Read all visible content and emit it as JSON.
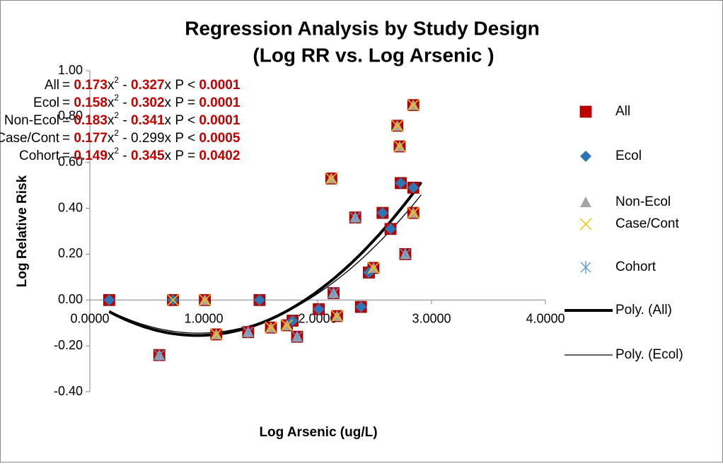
{
  "chart_data": {
    "type": "scatter",
    "title": "Regression Analysis by Study Design",
    "subtitle": "(Log RR vs. Log Arsenic )",
    "x_label": "Log Arsenic (ug/L)",
    "y_label": "Log Relative Risk",
    "xlim": [
      0,
      4
    ],
    "ylim": [
      -0.4,
      1
    ],
    "xticks": [
      {
        "value": 0,
        "label": "0.0000"
      },
      {
        "value": 1,
        "label": "1.0000"
      },
      {
        "value": 2,
        "label": "2.0000"
      },
      {
        "value": 3,
        "label": "3.0000"
      },
      {
        "value": 4,
        "label": "4.0000"
      }
    ],
    "yticks": [
      {
        "value": -0.4,
        "label": "-0.40"
      },
      {
        "value": -0.2,
        "label": "-0.20"
      },
      {
        "value": 0,
        "label": "0.00"
      },
      {
        "value": 0.2,
        "label": "0.20"
      },
      {
        "value": 0.4,
        "label": "0.40"
      },
      {
        "value": 0.6,
        "label": "0.60"
      },
      {
        "value": 0.8,
        "label": "0.80"
      },
      {
        "value": 1,
        "label": "1.00"
      }
    ],
    "series": [
      {
        "name": "All",
        "color": "#c00000",
        "marker": "square",
        "x": [
          0.17,
          0.61,
          0.73,
          1.01,
          1.11,
          1.39,
          1.49,
          1.59,
          1.73,
          1.78,
          1.82,
          2.01,
          2.12,
          2.14,
          2.17,
          2.33,
          2.38,
          2.45,
          2.49,
          2.57,
          2.64,
          2.7,
          2.72,
          2.73,
          2.77,
          2.84,
          2.84,
          2.84
        ],
        "values": [
          0,
          -0.24,
          0,
          0,
          -0.15,
          -0.14,
          0,
          -0.12,
          -0.11,
          -0.09,
          -0.16,
          -0.04,
          0.53,
          0.03,
          -0.07,
          0.36,
          -0.03,
          0.12,
          0.14,
          0.38,
          0.31,
          0.76,
          0.67,
          0.51,
          0.2,
          0.85,
          0.49,
          0.38
        ]
      },
      {
        "name": "Ecol",
        "color": "#2e75b6",
        "marker": "diamond",
        "x": [
          0.17,
          0.73,
          1.49,
          1.78,
          2.01,
          2.38,
          2.45,
          2.57,
          2.64,
          2.73,
          2.84
        ],
        "values": [
          0,
          0,
          0,
          -0.09,
          -0.04,
          -0.03,
          0.12,
          0.38,
          0.31,
          0.51,
          0.49
        ]
      },
      {
        "name": "Non-Ecol",
        "color": "#a5a5a5",
        "marker": "triangle",
        "x": [
          0.61,
          1.01,
          1.11,
          1.39,
          1.59,
          1.73,
          1.82,
          2.12,
          2.14,
          2.17,
          2.33,
          2.49,
          2.7,
          2.72,
          2.77,
          2.84,
          2.84
        ],
        "values": [
          -0.24,
          0,
          -0.15,
          -0.14,
          -0.12,
          -0.11,
          -0.16,
          0.53,
          0.03,
          -0.07,
          0.36,
          0.14,
          0.76,
          0.67,
          0.2,
          0.85,
          0.38
        ]
      },
      {
        "name": "Case/Cont",
        "color": "#ffc000",
        "marker": "x",
        "x": [
          0.73,
          1.01,
          1.11,
          1.59,
          1.73,
          2.12,
          2.17,
          2.49,
          2.7,
          2.72,
          2.84,
          2.84
        ],
        "values": [
          0,
          0,
          -0.15,
          -0.12,
          -0.11,
          0.53,
          -0.07,
          0.14,
          0.76,
          0.67,
          0.85,
          0.38
        ]
      },
      {
        "name": "Cohort",
        "color": "#5b9bd5",
        "marker": "star",
        "x": [
          0.61,
          1.39,
          1.82,
          2.14,
          2.33,
          2.77
        ],
        "values": [
          -0.24,
          -0.14,
          -0.16,
          0.03,
          0.36,
          0.2
        ]
      }
    ],
    "trendlines": [
      {
        "name": "Poly. (All)",
        "equation": 0,
        "width": 4
      },
      {
        "name": "Poly. (Ecol)",
        "equation": 1,
        "width": 1.3
      }
    ],
    "equations": [
      {
        "label": "All",
        "a": 0.173,
        "b": 0.327,
        "b_bold": true,
        "op": "<",
        "p": 0.0001
      },
      {
        "label": "Ecol",
        "a": 0.158,
        "b": 0.302,
        "b_bold": true,
        "op": "=",
        "p": 0.0001
      },
      {
        "label": "Non-Ecol",
        "a": 0.183,
        "b": 0.341,
        "b_bold": true,
        "op": "<",
        "p": 0.0001
      },
      {
        "label": "Case/Cont",
        "a": 0.177,
        "b": 0.299,
        "b_bold": false,
        "op": "<",
        "p": 0.0005
      },
      {
        "label": "Cohort",
        "a": 0.149,
        "b": 0.345,
        "b_bold": true,
        "op": "=",
        "p": 0.0402
      }
    ]
  }
}
